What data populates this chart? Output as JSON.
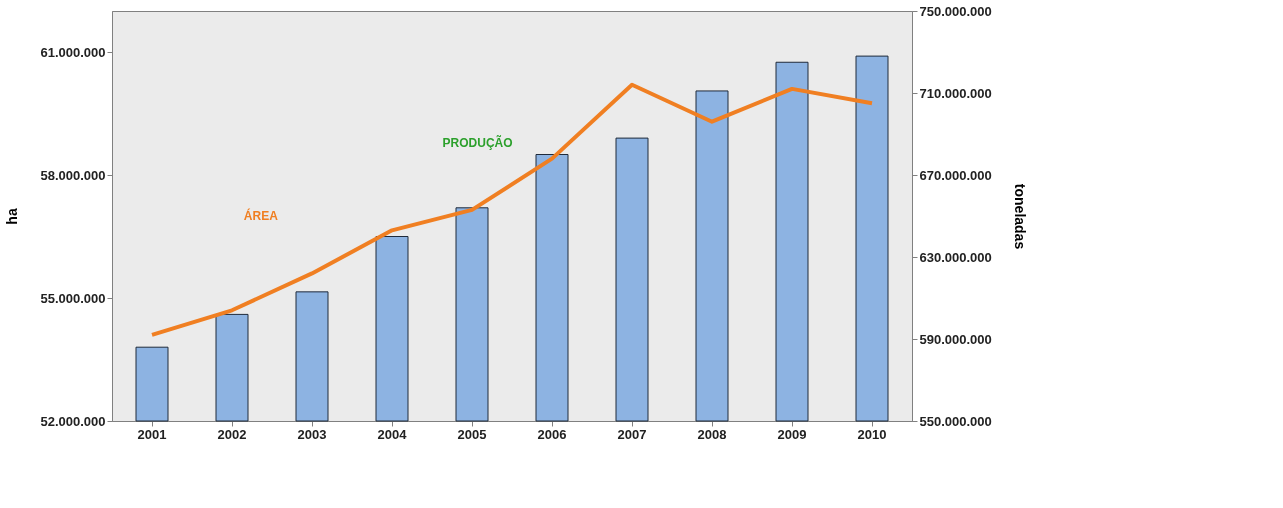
{
  "chart_data": {
    "type": "bar",
    "categories": [
      "2001",
      "2002",
      "2003",
      "2004",
      "2005",
      "2006",
      "2007",
      "2008",
      "2009",
      "2010"
    ],
    "series": [
      {
        "name": "PRODUÇÃO",
        "axis": "y2",
        "color": "#8db3e2",
        "values": [
          586000000,
          602000000,
          613000000,
          640000000,
          654000000,
          680000000,
          688000000,
          711000000,
          725000000,
          728000000
        ]
      },
      {
        "name": "ÁREA",
        "type": "line",
        "color": "#f07f22",
        "values": [
          54100000,
          54700000,
          55600000,
          56650000,
          57150000,
          58400000,
          60200000,
          59300000,
          60100000,
          59750000
        ]
      }
    ],
    "ylabel": "ha",
    "y2label": "toneladas",
    "ylim": [
      52000000,
      62000000
    ],
    "yticks": [
      {
        "value": 52000000,
        "label": "52.000.000"
      },
      {
        "value": 55000000,
        "label": "55.000.000"
      },
      {
        "value": 58000000,
        "label": "58.000.000"
      },
      {
        "value": 61000000,
        "label": "61.000.000"
      }
    ],
    "y2lim": [
      550000000,
      750000000
    ],
    "y2ticks": [
      {
        "value": 550000000,
        "label": "550.000.000"
      },
      {
        "value": 590000000,
        "label": "590.000.000"
      },
      {
        "value": 630000000,
        "label": "630.000.000"
      },
      {
        "value": 670000000,
        "label": "670.000.000"
      },
      {
        "value": 710000000,
        "label": "710.000.000"
      },
      {
        "value": 750000000,
        "label": "750.000.000"
      }
    ],
    "grid": false,
    "legend": false
  }
}
